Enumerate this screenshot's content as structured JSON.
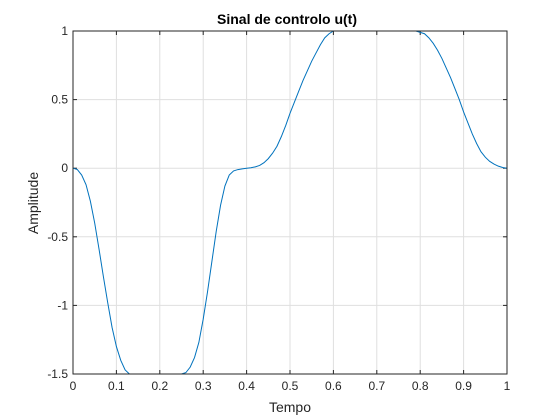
{
  "chart_data": {
    "type": "line",
    "title": "Sinal de controlo u(t)",
    "xlabel": "Tempo",
    "ylabel": "Amplitude",
    "xlim": [
      0,
      1
    ],
    "ylim": [
      -1.5,
      1
    ],
    "xticks": [
      0,
      0.1,
      0.2,
      0.3,
      0.4,
      0.5,
      0.6,
      0.7,
      0.8,
      0.9,
      1
    ],
    "xtick_labels": [
      "0",
      "0.1",
      "0.2",
      "0.3",
      "0.4",
      "0.5",
      "0.6",
      "0.7",
      "0.8",
      "0.9",
      "1"
    ],
    "yticks": [
      -1.5,
      -1,
      -0.5,
      0,
      0.5,
      1
    ],
    "ytick_labels": [
      "-1.5",
      "-1",
      "-0.5",
      "0",
      "0.5",
      "1"
    ],
    "grid": true,
    "color": "#0072bd",
    "series": [
      {
        "x": [
          0,
          0.01,
          0.02,
          0.03,
          0.04,
          0.05,
          0.06,
          0.07,
          0.08,
          0.09,
          0.1,
          0.11,
          0.12,
          0.13,
          0.14,
          0.15,
          0.16,
          0.17,
          0.18,
          0.19,
          0.2,
          0.21,
          0.22,
          0.23,
          0.24,
          0.25,
          0.26,
          0.27,
          0.28,
          0.29,
          0.3,
          0.31,
          0.32,
          0.33,
          0.34,
          0.35,
          0.36,
          0.37,
          0.38,
          0.39,
          0.4,
          0.41,
          0.42,
          0.43,
          0.44,
          0.45,
          0.46,
          0.47,
          0.48,
          0.49,
          0.5,
          0.51,
          0.52,
          0.53,
          0.54,
          0.55,
          0.56,
          0.57,
          0.58,
          0.59,
          0.6,
          0.61,
          0.62,
          0.63,
          0.64,
          0.65,
          0.66,
          0.67,
          0.68,
          0.69,
          0.7,
          0.71,
          0.72,
          0.73,
          0.74,
          0.75,
          0.76,
          0.77,
          0.78,
          0.79,
          0.8,
          0.81,
          0.82,
          0.83,
          0.84,
          0.85,
          0.86,
          0.87,
          0.88,
          0.89,
          0.9,
          0.91,
          0.92,
          0.93,
          0.94,
          0.95,
          0.96,
          0.97,
          0.98,
          0.99,
          1.0
        ],
        "y": [
          0,
          -0.01,
          -0.05,
          -0.12,
          -0.24,
          -0.4,
          -0.59,
          -0.79,
          -0.98,
          -1.16,
          -1.3,
          -1.4,
          -1.47,
          -1.5,
          -1.5,
          -1.5,
          -1.5,
          -1.5,
          -1.5,
          -1.5,
          -1.5,
          -1.5,
          -1.5,
          -1.5,
          -1.5,
          -1.5,
          -1.49,
          -1.45,
          -1.38,
          -1.27,
          -1.1,
          -0.9,
          -0.68,
          -0.46,
          -0.27,
          -0.13,
          -0.05,
          -0.02,
          -0.01,
          -0.005,
          0,
          0.003,
          0.01,
          0.02,
          0.04,
          0.07,
          0.11,
          0.16,
          0.23,
          0.31,
          0.4,
          0.48,
          0.56,
          0.64,
          0.71,
          0.78,
          0.84,
          0.9,
          0.95,
          0.98,
          1.0,
          1.0,
          1.0,
          1.0,
          1.0,
          1.0,
          1.0,
          1.0,
          1.0,
          1.0,
          1.0,
          1.0,
          1.0,
          1.0,
          1.0,
          1.0,
          1.0,
          1.0,
          1.0,
          1.0,
          0.99,
          0.98,
          0.95,
          0.91,
          0.86,
          0.8,
          0.73,
          0.66,
          0.58,
          0.5,
          0.41,
          0.33,
          0.25,
          0.18,
          0.12,
          0.08,
          0.05,
          0.03,
          0.015,
          0.005,
          0
        ]
      }
    ]
  }
}
